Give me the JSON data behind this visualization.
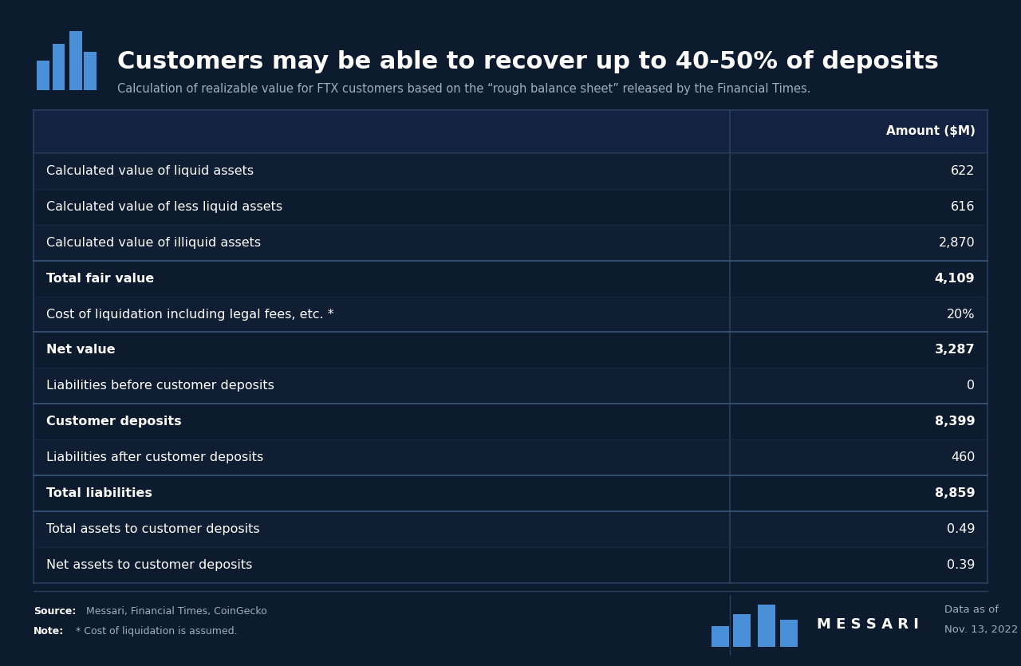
{
  "title": "Customers may be able to recover up to 40-50% of deposits",
  "subtitle": "Calculation of realizable value for FTX customers based on the “rough balance sheet” released by the Financial Times.",
  "bg_color": "#0d1b2e",
  "table_bg_dark": "#0f1f35",
  "header_bg": "#122240",
  "border_color": "#2a3f5f",
  "text_color": "#ffffff",
  "muted_color": "#a0aec0",
  "accent_color": "#4a90d9",
  "rows": [
    {
      "label": "Calculated value of liquid assets",
      "value": "622",
      "bold": false,
      "border_top": false
    },
    {
      "label": "Calculated value of less liquid assets",
      "value": "616",
      "bold": false,
      "border_top": false
    },
    {
      "label": "Calculated value of illiquid assets",
      "value": "2,870",
      "bold": false,
      "border_top": false
    },
    {
      "label": "Total fair value",
      "value": "4,109",
      "bold": true,
      "border_top": true
    },
    {
      "label": "Cost of liquidation including legal fees, etc. *",
      "value": "20%",
      "bold": false,
      "border_top": false
    },
    {
      "label": "Net value",
      "value": "3,287",
      "bold": true,
      "border_top": true
    },
    {
      "label": "Liabilities before customer deposits",
      "value": "0",
      "bold": false,
      "border_top": false
    },
    {
      "label": "Customer deposits",
      "value": "8,399",
      "bold": true,
      "border_top": true
    },
    {
      "label": "Liabilities after customer deposits",
      "value": "460",
      "bold": false,
      "border_top": false
    },
    {
      "label": "Total liabilities",
      "value": "8,859",
      "bold": true,
      "border_top": true
    },
    {
      "label": "Total assets to customer deposits",
      "value": "0.49",
      "bold": false,
      "border_top": true
    },
    {
      "label": "Net assets to customer deposits",
      "value": "0.39",
      "bold": false,
      "border_top": false
    }
  ],
  "col_header": "Amount ($M)",
  "source_bold": "Source:",
  "source_rest": " Messari, Financial Times, CoinGecko",
  "note_bold": "Note:",
  "note_rest": " * Cost of liquidation is assumed.",
  "date_label": "Data as of",
  "date_value": "Nov. 13, 2022",
  "messari_text": "M E S S A R I",
  "logo_color": "#4a90d9"
}
